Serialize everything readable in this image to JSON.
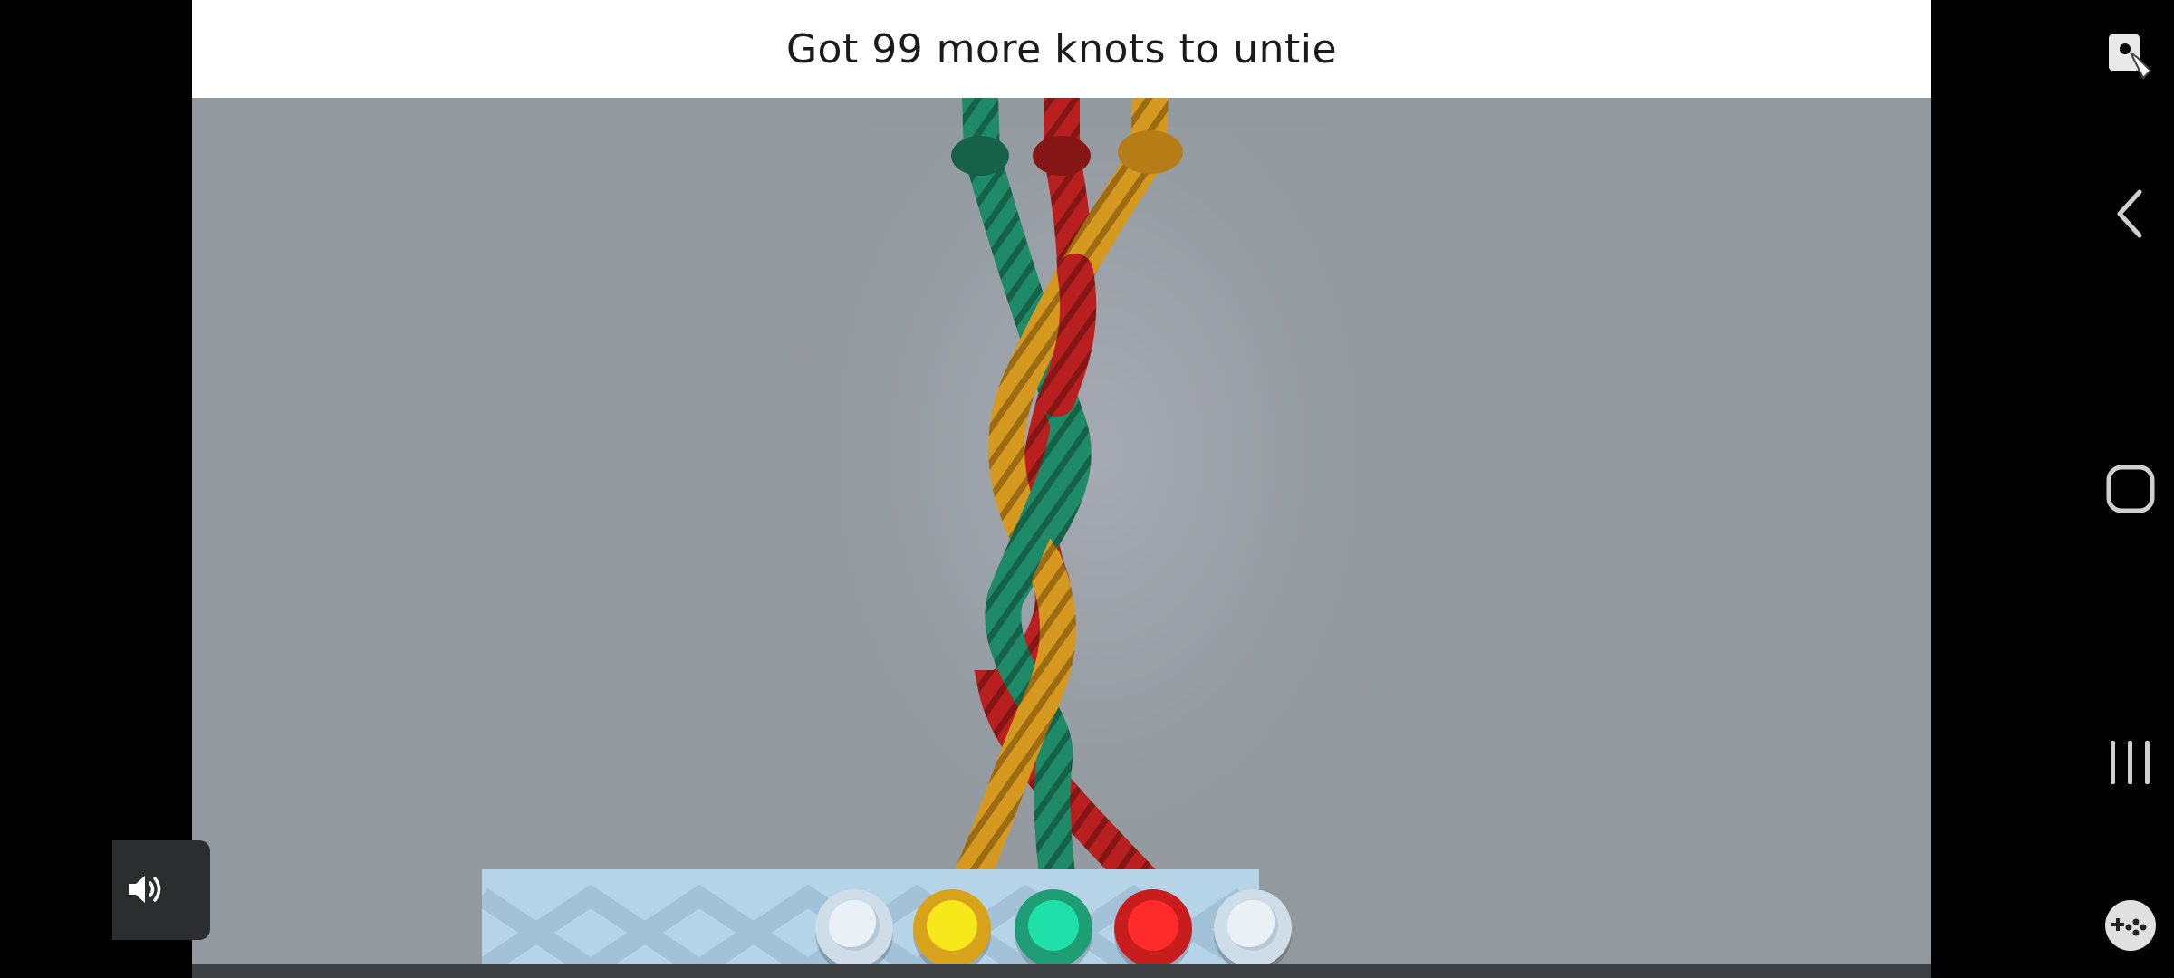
{
  "banner": {
    "text": "Got 99 more knots to untie"
  },
  "ropes": [
    {
      "color_name": "green",
      "color": "#1e8a68"
    },
    {
      "color_name": "red",
      "color": "#b8201f"
    },
    {
      "color_name": "orange",
      "color": "#d6991f"
    }
  ],
  "pegs": [
    {
      "name": "empty"
    },
    {
      "name": "yellow",
      "color": "#f6e81a"
    },
    {
      "name": "green",
      "color": "#1ee0a8"
    },
    {
      "name": "red",
      "color": "#ff2a2a"
    },
    {
      "name": "empty"
    }
  ],
  "navbar": {
    "icons": [
      "screen-assist-icon",
      "back-icon",
      "home-icon",
      "recents-icon",
      "game-tools-icon"
    ]
  },
  "volume": {
    "icon": "speaker-icon"
  }
}
